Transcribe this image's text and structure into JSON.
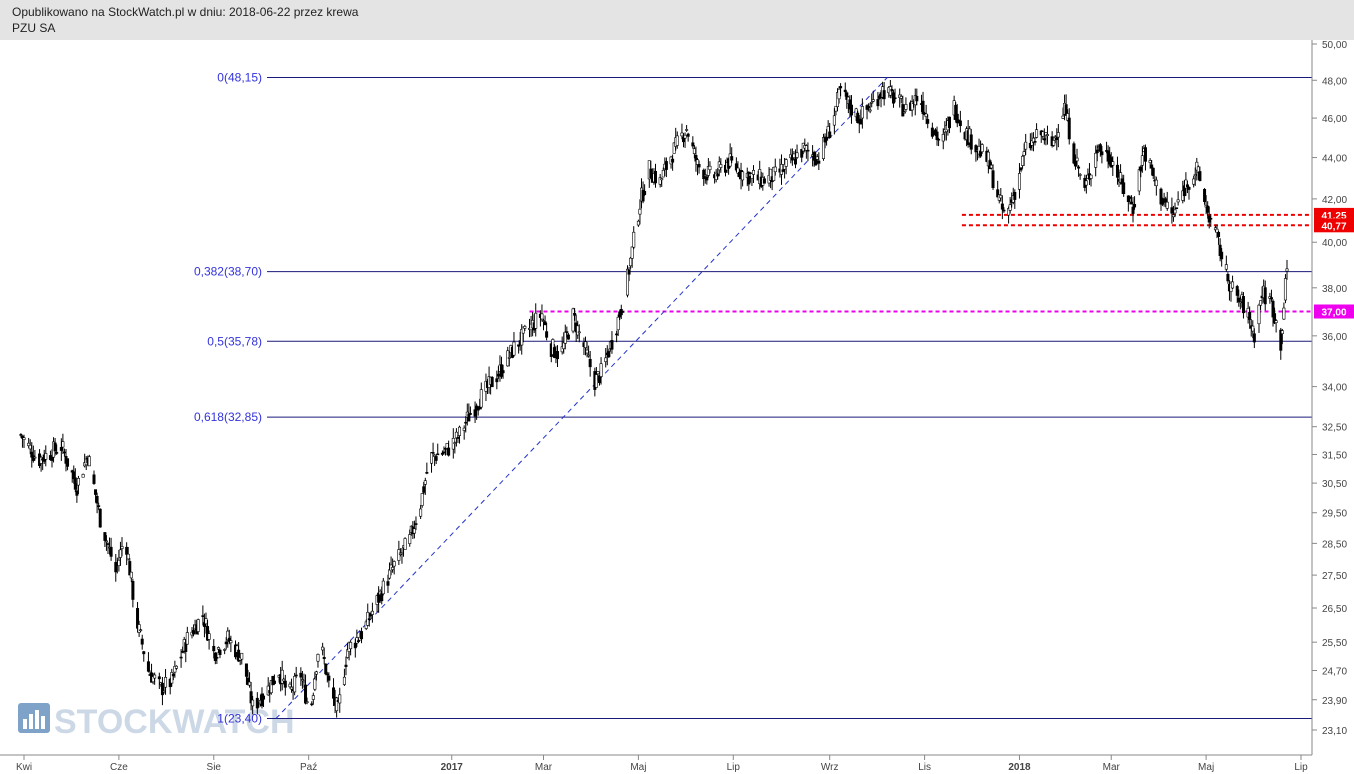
{
  "header": {
    "title": "Opublikowano na StockWatch.pl w dniu: 2018-06-22 przez krewa",
    "instrument": "PZU SA"
  },
  "watermark": "STOCKWATCH",
  "colors": {
    "fib": "#1a1a7a",
    "trend": "#2233cc",
    "resistance": "#ee0000",
    "support": "#ee00ee",
    "candle": "#000000"
  },
  "chart_data": {
    "type": "candlestick",
    "title": "",
    "xlabel": "",
    "ylabel": "",
    "y_scale": "log",
    "ylim": [
      22.5,
      50.5
    ],
    "xlim": [
      "2016-04-01",
      "2018-07-10"
    ],
    "y_ticks": [
      "50,00",
      "48,00",
      "46,00",
      "44,00",
      "42,00",
      "40,00",
      "38,00",
      "36,00",
      "34,00",
      "32,50",
      "31,50",
      "30,50",
      "29,50",
      "28,50",
      "27,50",
      "26,50",
      "25,50",
      "24,70",
      "23,90",
      "23,10"
    ],
    "x_ticks": [
      {
        "label": "Kwi",
        "date": "2016-04-01",
        "bold": false
      },
      {
        "label": "Cze",
        "date": "2016-06-01",
        "bold": false
      },
      {
        "label": "Sie",
        "date": "2016-08-01",
        "bold": false
      },
      {
        "label": "Paź",
        "date": "2016-10-01",
        "bold": false
      },
      {
        "label": "2017",
        "date": "2017-01-01",
        "bold": true
      },
      {
        "label": "Mar",
        "date": "2017-03-01",
        "bold": false
      },
      {
        "label": "Maj",
        "date": "2017-05-01",
        "bold": false
      },
      {
        "label": "Lip",
        "date": "2017-07-01",
        "bold": false
      },
      {
        "label": "Wrz",
        "date": "2017-09-01",
        "bold": false
      },
      {
        "label": "Lis",
        "date": "2017-11-01",
        "bold": false
      },
      {
        "label": "2018",
        "date": "2018-01-01",
        "bold": true
      },
      {
        "label": "Mar",
        "date": "2018-03-01",
        "bold": false
      },
      {
        "label": "Maj",
        "date": "2018-05-01",
        "bold": false
      },
      {
        "label": "Lip",
        "date": "2018-07-01",
        "bold": false
      }
    ],
    "fibonacci": [
      {
        "label": "0(48,15)",
        "value": 48.15
      },
      {
        "label": "0,382(38,70)",
        "value": 38.7
      },
      {
        "label": "0,5(35,78)",
        "value": 35.78
      },
      {
        "label": "0,618(32,85)",
        "value": 32.85
      },
      {
        "label": "1(23,40)",
        "value": 23.4
      }
    ],
    "trendline": {
      "from": {
        "date": "2016-09-10",
        "value": 23.4
      },
      "to": {
        "date": "2017-10-08",
        "value": 48.15
      }
    },
    "levels": [
      {
        "label": "41,25",
        "value": 41.25,
        "color": "#ee0000",
        "from": "2017-11-25"
      },
      {
        "label": "40,77",
        "value": 40.77,
        "color": "#ee0000",
        "from": "2017-11-25"
      },
      {
        "label": "37,00",
        "value": 37.0,
        "color": "#ee00ee",
        "from": "2017-02-20"
      }
    ],
    "price_path": [
      [
        "2016-03-30",
        32.2
      ],
      [
        "2016-04-10",
        31.3
      ],
      [
        "2016-04-25",
        31.8
      ],
      [
        "2016-05-05",
        30.4
      ],
      [
        "2016-05-12",
        31.5
      ],
      [
        "2016-05-20",
        29.3
      ],
      [
        "2016-05-30",
        27.6
      ],
      [
        "2016-06-05",
        28.8
      ],
      [
        "2016-06-12",
        26.2
      ],
      [
        "2016-06-20",
        24.7
      ],
      [
        "2016-06-28",
        24.2
      ],
      [
        "2016-07-05",
        24.4
      ],
      [
        "2016-07-15",
        25.6
      ],
      [
        "2016-07-25",
        26.3
      ],
      [
        "2016-08-01",
        25.2
      ],
      [
        "2016-08-10",
        25.6
      ],
      [
        "2016-08-20",
        25.0
      ],
      [
        "2016-08-26",
        23.7
      ],
      [
        "2016-09-05",
        24.2
      ],
      [
        "2016-09-12",
        24.7
      ],
      [
        "2016-09-18",
        24.0
      ],
      [
        "2016-09-26",
        24.6
      ],
      [
        "2016-10-02",
        23.5
      ],
      [
        "2016-10-08",
        25.6
      ],
      [
        "2016-10-15",
        24.1
      ],
      [
        "2016-10-20",
        23.6
      ],
      [
        "2016-10-26",
        25.3
      ],
      [
        "2016-11-05",
        25.8
      ],
      [
        "2016-11-15",
        26.8
      ],
      [
        "2016-11-25",
        27.8
      ],
      [
        "2016-12-05",
        28.6
      ],
      [
        "2016-12-12",
        29.8
      ],
      [
        "2016-12-18",
        31.4
      ],
      [
        "2016-12-28",
        31.6
      ],
      [
        "2017-01-05",
        32.1
      ],
      [
        "2017-01-12",
        32.9
      ],
      [
        "2017-01-20",
        33.6
      ],
      [
        "2017-02-01",
        34.6
      ],
      [
        "2017-02-10",
        35.5
      ],
      [
        "2017-02-20",
        36.3
      ],
      [
        "2017-02-28",
        36.9
      ],
      [
        "2017-03-05",
        35.6
      ],
      [
        "2017-03-12",
        35.2
      ],
      [
        "2017-03-20",
        36.8
      ],
      [
        "2017-03-28",
        35.4
      ],
      [
        "2017-04-03",
        34.2
      ],
      [
        "2017-04-08",
        34.6
      ],
      [
        "2017-04-15",
        36.0
      ],
      [
        "2017-04-22",
        37.6
      ],
      [
        "2017-04-27",
        39.6
      ],
      [
        "2017-05-02",
        41.8
      ],
      [
        "2017-05-08",
        43.4
      ],
      [
        "2017-05-15",
        42.8
      ],
      [
        "2017-05-22",
        44.1
      ],
      [
        "2017-06-01",
        45.5
      ],
      [
        "2017-06-08",
        43.6
      ],
      [
        "2017-06-18",
        43.0
      ],
      [
        "2017-06-28",
        43.8
      ],
      [
        "2017-07-08",
        43.2
      ],
      [
        "2017-07-20",
        42.9
      ],
      [
        "2017-07-28",
        43.1
      ],
      [
        "2017-08-05",
        43.6
      ],
      [
        "2017-08-15",
        44.4
      ],
      [
        "2017-08-25",
        44.0
      ],
      [
        "2017-09-01",
        45.4
      ],
      [
        "2017-09-08",
        47.4
      ],
      [
        "2017-09-14",
        46.6
      ],
      [
        "2017-09-20",
        46.0
      ],
      [
        "2017-09-28",
        46.7
      ],
      [
        "2017-10-05",
        47.5
      ],
      [
        "2017-10-12",
        47.1
      ],
      [
        "2017-10-20",
        46.4
      ],
      [
        "2017-10-28",
        47.2
      ],
      [
        "2017-11-05",
        45.7
      ],
      [
        "2017-11-12",
        44.6
      ],
      [
        "2017-11-20",
        46.6
      ],
      [
        "2017-11-28",
        45.2
      ],
      [
        "2017-12-05",
        44.5
      ],
      [
        "2017-12-12",
        43.8
      ],
      [
        "2017-12-18",
        42.2
      ],
      [
        "2017-12-23",
        41.0
      ],
      [
        "2017-12-30",
        42.6
      ],
      [
        "2018-01-05",
        44.4
      ],
      [
        "2018-01-15",
        45.2
      ],
      [
        "2018-01-22",
        44.6
      ],
      [
        "2018-01-30",
        46.6
      ],
      [
        "2018-02-05",
        44.2
      ],
      [
        "2018-02-12",
        42.4
      ],
      [
        "2018-02-20",
        44.5
      ],
      [
        "2018-03-01",
        44.0
      ],
      [
        "2018-03-08",
        42.6
      ],
      [
        "2018-03-15",
        41.6
      ],
      [
        "2018-03-22",
        44.4
      ],
      [
        "2018-04-01",
        42.2
      ],
      [
        "2018-04-10",
        41.2
      ],
      [
        "2018-04-18",
        42.7
      ],
      [
        "2018-04-25",
        43.4
      ],
      [
        "2018-05-02",
        41.4
      ],
      [
        "2018-05-08",
        40.2
      ],
      [
        "2018-05-14",
        38.6
      ],
      [
        "2018-05-20",
        37.6
      ],
      [
        "2018-05-26",
        37.2
      ],
      [
        "2018-06-01",
        36.1
      ],
      [
        "2018-06-06",
        37.8
      ],
      [
        "2018-06-12",
        37.4
      ],
      [
        "2018-06-18",
        35.7
      ],
      [
        "2018-06-22",
        38.8
      ]
    ]
  }
}
